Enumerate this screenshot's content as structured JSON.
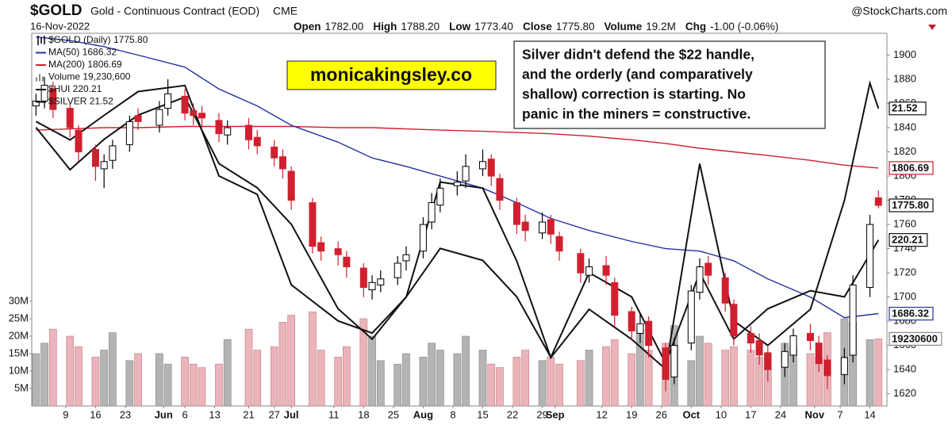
{
  "chart_data": {
    "type": "candlestick",
    "title": "$GOLD",
    "subtitle": "Gold - Continuous Contract (EOD)",
    "exchange": "CME",
    "source": "@StockCharts.com",
    "date": "16-Nov-2022",
    "stats": [
      {
        "label": "Open",
        "value": "1782.00"
      },
      {
        "label": "High",
        "value": "1788.20"
      },
      {
        "label": "Low",
        "value": "1773.40"
      },
      {
        "label": "Close",
        "value": "1775.80"
      },
      {
        "label": "Volume",
        "value": "19.2M"
      },
      {
        "label": "Chg",
        "value": "-1.00 (-0.06%)"
      }
    ],
    "name": "$GOLD (Daily) 1775.80",
    "last_label": "1775.80",
    "up_color": "#000000",
    "down_color": "#d0202f",
    "x": [
      "2022-05-02",
      "2022-05-04",
      "2022-05-06",
      "2022-05-10",
      "2022-05-12",
      "2022-05-16",
      "2022-05-18",
      "2022-05-20",
      "2022-05-24",
      "2022-05-26",
      "2022-05-31",
      "2022-06-02",
      "2022-06-06",
      "2022-06-08",
      "2022-06-10",
      "2022-06-14",
      "2022-06-16",
      "2022-06-21",
      "2022-06-23",
      "2022-06-27",
      "2022-06-29",
      "2022-07-01",
      "2022-07-06",
      "2022-07-08",
      "2022-07-12",
      "2022-07-14",
      "2022-07-18",
      "2022-07-20",
      "2022-07-22",
      "2022-07-26",
      "2022-07-28",
      "2022-08-01",
      "2022-08-03",
      "2022-08-05",
      "2022-08-09",
      "2022-08-11",
      "2022-08-15",
      "2022-08-17",
      "2022-08-19",
      "2022-08-23",
      "2022-08-25",
      "2022-08-29",
      "2022-08-31",
      "2022-09-02",
      "2022-09-07",
      "2022-09-09",
      "2022-09-13",
      "2022-09-15",
      "2022-09-19",
      "2022-09-21",
      "2022-09-23",
      "2022-09-27",
      "2022-09-29",
      "2022-10-03",
      "2022-10-05",
      "2022-10-07",
      "2022-10-11",
      "2022-10-13",
      "2022-10-17",
      "2022-10-19",
      "2022-10-21",
      "2022-10-25",
      "2022-10-27",
      "2022-10-31",
      "2022-11-02",
      "2022-11-04",
      "2022-11-08",
      "2022-11-10",
      "2022-11-14",
      "2022-11-16"
    ],
    "open": [
      1858,
      1862,
      1872,
      1856,
      1838,
      1822,
      1806,
      1813,
      1826,
      1850,
      1842,
      1856,
      1866,
      1854,
      1852,
      1846,
      1834,
      1842,
      1832,
      1824,
      1816,
      1804,
      1778,
      1745,
      1740,
      1733,
      1724,
      1706,
      1710,
      1716,
      1730,
      1738,
      1762,
      1776,
      1792,
      1796,
      1806,
      1814,
      1798,
      1778,
      1762,
      1753,
      1764,
      1750,
      1736,
      1718,
      1726,
      1712,
      1688,
      1670,
      1680,
      1658,
      1634,
      1662,
      1704,
      1728,
      1716,
      1694,
      1670,
      1664,
      1654,
      1642,
      1652,
      1670,
      1662,
      1648,
      1636,
      1652,
      1708,
      1782
    ],
    "high": [
      1868,
      1882,
      1878,
      1860,
      1842,
      1826,
      1818,
      1830,
      1850,
      1856,
      1862,
      1880,
      1872,
      1860,
      1858,
      1852,
      1846,
      1848,
      1838,
      1830,
      1822,
      1808,
      1782,
      1750,
      1746,
      1738,
      1728,
      1718,
      1722,
      1734,
      1742,
      1766,
      1786,
      1798,
      1804,
      1818,
      1822,
      1818,
      1802,
      1782,
      1768,
      1770,
      1768,
      1754,
      1740,
      1732,
      1734,
      1716,
      1692,
      1686,
      1684,
      1662,
      1666,
      1710,
      1732,
      1734,
      1720,
      1698,
      1676,
      1670,
      1660,
      1662,
      1674,
      1678,
      1668,
      1652,
      1658,
      1718,
      1768,
      1788.2
    ],
    "low": [
      1850,
      1856,
      1848,
      1832,
      1812,
      1796,
      1790,
      1806,
      1820,
      1838,
      1836,
      1850,
      1846,
      1842,
      1840,
      1828,
      1826,
      1822,
      1818,
      1808,
      1798,
      1772,
      1736,
      1730,
      1726,
      1716,
      1700,
      1698,
      1704,
      1710,
      1722,
      1732,
      1756,
      1770,
      1784,
      1790,
      1800,
      1792,
      1772,
      1752,
      1746,
      1748,
      1744,
      1730,
      1712,
      1712,
      1710,
      1676,
      1664,
      1662,
      1650,
      1622,
      1628,
      1656,
      1698,
      1710,
      1688,
      1660,
      1654,
      1644,
      1630,
      1634,
      1646,
      1656,
      1638,
      1624,
      1628,
      1646,
      1700,
      1773.4
    ],
    "close": [
      1862,
      1875,
      1855,
      1840,
      1820,
      1808,
      1812,
      1825,
      1845,
      1845,
      1855,
      1868,
      1852,
      1850,
      1848,
      1835,
      1840,
      1830,
      1825,
      1815,
      1806,
      1780,
      1742,
      1738,
      1735,
      1725,
      1708,
      1712,
      1715,
      1728,
      1735,
      1760,
      1778,
      1790,
      1795,
      1808,
      1812,
      1800,
      1780,
      1760,
      1755,
      1762,
      1752,
      1738,
      1720,
      1725,
      1718,
      1685,
      1672,
      1678,
      1660,
      1632,
      1660,
      1705,
      1725,
      1718,
      1695,
      1668,
      1662,
      1652,
      1640,
      1655,
      1668,
      1664,
      1645,
      1635,
      1650,
      1710,
      1760,
      1775.8
    ],
    "xlim": [
      "2022-05-01",
      "2022-11-18"
    ],
    "xticks": [
      {
        "value": "2022-05-09",
        "label": "9"
      },
      {
        "value": "2022-05-16",
        "label": "16"
      },
      {
        "value": "2022-05-23",
        "label": "23"
      },
      {
        "value": "2022-06-01",
        "label": "Jun"
      },
      {
        "value": "2022-06-06",
        "label": "6"
      },
      {
        "value": "2022-06-13",
        "label": "13"
      },
      {
        "value": "2022-06-21",
        "label": "21"
      },
      {
        "value": "2022-06-27",
        "label": "27"
      },
      {
        "value": "2022-07-01",
        "label": "Jul"
      },
      {
        "value": "2022-07-11",
        "label": "11"
      },
      {
        "value": "2022-07-18",
        "label": "18"
      },
      {
        "value": "2022-07-25",
        "label": "25"
      },
      {
        "value": "2022-08-01",
        "label": "Aug"
      },
      {
        "value": "2022-08-08",
        "label": "8"
      },
      {
        "value": "2022-08-15",
        "label": "15"
      },
      {
        "value": "2022-08-22",
        "label": "22"
      },
      {
        "value": "2022-08-29",
        "label": "29"
      },
      {
        "value": "2022-09-01",
        "label": "Sep"
      },
      {
        "value": "2022-09-12",
        "label": "12"
      },
      {
        "value": "2022-09-19",
        "label": "19"
      },
      {
        "value": "2022-09-26",
        "label": "26"
      },
      {
        "value": "2022-10-03",
        "label": "Oct"
      },
      {
        "value": "2022-10-10",
        "label": "10"
      },
      {
        "value": "2022-10-17",
        "label": "17"
      },
      {
        "value": "2022-10-24",
        "label": "24"
      },
      {
        "value": "2022-11-01",
        "label": "Nov"
      },
      {
        "value": "2022-11-07",
        "label": "7"
      },
      {
        "value": "2022-11-14",
        "label": "14"
      }
    ],
    "ylim": [
      1610,
      1918
    ],
    "yticks": [
      1620,
      1640,
      1660,
      1680,
      1700,
      1720,
      1740,
      1760,
      1780,
      1800,
      1820,
      1840,
      1860,
      1880,
      1900
    ],
    "volume": {
      "name": "Volume 19,230,600",
      "last_label": "19230600",
      "up_color": "#b4b4b4",
      "down_color": "#eab4ba",
      "ylim": [
        0,
        30000000
      ],
      "yticks": [
        {
          "value": 5000000,
          "label": "5M"
        },
        {
          "value": 10000000,
          "label": "10M"
        },
        {
          "value": 15000000,
          "label": "15M"
        },
        {
          "value": 20000000,
          "label": "20M"
        },
        {
          "value": 25000000,
          "label": "25M"
        },
        {
          "value": 30000000,
          "label": "30M"
        }
      ],
      "values": [
        15000000,
        18000000,
        22000000,
        20000000,
        17000000,
        14000000,
        16000000,
        21000000,
        13000000,
        15000000,
        15000000,
        12000000,
        14000000,
        12000000,
        11000000,
        12000000,
        19000000,
        22000000,
        16000000,
        17000000,
        24000000,
        26000000,
        27000000,
        16000000,
        14000000,
        17000000,
        25000000,
        20000000,
        13000000,
        12000000,
        15000000,
        14000000,
        18000000,
        16000000,
        15000000,
        20000000,
        16000000,
        12000000,
        11000000,
        14000000,
        16000000,
        13000000,
        14000000,
        12000000,
        13000000,
        16000000,
        17000000,
        19000000,
        15000000,
        22000000,
        16000000,
        18000000,
        23000000,
        13000000,
        20000000,
        18000000,
        16000000,
        17000000,
        16000000,
        14000000,
        15000000,
        18000000,
        17000000,
        15000000,
        14000000,
        21000000,
        25000000,
        24000000,
        19000000,
        19230600
      ]
    },
    "series": [
      {
        "name": "MA(50) 1686.32",
        "color": "#2233a0",
        "last_label": "1686.32",
        "x": [
          "2022-05-02",
          "2022-05-10",
          "2022-05-18",
          "2022-05-26",
          "2022-06-06",
          "2022-06-14",
          "2022-06-23",
          "2022-07-01",
          "2022-07-12",
          "2022-07-20",
          "2022-07-28",
          "2022-08-05",
          "2022-08-15",
          "2022-08-23",
          "2022-08-31",
          "2022-09-09",
          "2022-09-19",
          "2022-09-27",
          "2022-10-05",
          "2022-10-13",
          "2022-10-21",
          "2022-10-31",
          "2022-11-08",
          "2022-11-16"
        ],
        "values": [
          1915,
          1912,
          1907,
          1900,
          1890,
          1872,
          1858,
          1842,
          1828,
          1815,
          1808,
          1800,
          1790,
          1778,
          1765,
          1755,
          1746,
          1740,
          1738,
          1730,
          1715,
          1700,
          1683,
          1686.32
        ]
      },
      {
        "name": "MA(200) 1806.69",
        "color": "#d0202f",
        "last_label": "1806.69",
        "x": [
          "2022-05-02",
          "2022-05-10",
          "2022-05-18",
          "2022-05-26",
          "2022-06-06",
          "2022-06-14",
          "2022-06-23",
          "2022-07-01",
          "2022-07-12",
          "2022-07-20",
          "2022-07-28",
          "2022-08-05",
          "2022-08-15",
          "2022-08-23",
          "2022-08-31",
          "2022-09-09",
          "2022-09-19",
          "2022-09-27",
          "2022-10-05",
          "2022-10-13",
          "2022-10-21",
          "2022-10-31",
          "2022-11-08",
          "2022-11-16"
        ],
        "values": [
          1838,
          1839,
          1840,
          1840,
          1841,
          1841,
          1841,
          1841,
          1840,
          1840,
          1839,
          1838,
          1837,
          1836,
          1835,
          1833,
          1830,
          1827,
          1823,
          1820,
          1817,
          1813,
          1809,
          1806.69
        ]
      },
      {
        "name": "$HUI 220.21",
        "color": "#111111",
        "last_label": "220.21",
        "ylim": [
          177,
          274
        ],
        "x": [
          "2022-05-02",
          "2022-05-10",
          "2022-05-18",
          "2022-05-26",
          "2022-06-06",
          "2022-06-14",
          "2022-06-23",
          "2022-07-01",
          "2022-07-12",
          "2022-07-20",
          "2022-07-28",
          "2022-08-05",
          "2022-08-15",
          "2022-08-23",
          "2022-08-31",
          "2022-09-09",
          "2022-09-19",
          "2022-09-27",
          "2022-10-05",
          "2022-10-13",
          "2022-10-21",
          "2022-10-31",
          "2022-11-08",
          "2022-11-16"
        ],
        "values": [
          249.5,
          238.5,
          246.4,
          252.7,
          257.4,
          240.1,
          233.8,
          224.3,
          202.3,
          194.4,
          205.4,
          218.0,
          214.9,
          205.4,
          189.7,
          211.7,
          205.4,
          188.1,
          211.7,
          194.4,
          202.3,
          207.0,
          205.4,
          220.21
        ]
      },
      {
        "name": "$SILVER 21.52",
        "color": "#111111",
        "last_label": "21.52",
        "ylim": [
          17.64,
          22.5
        ],
        "x": [
          "2022-05-02",
          "2022-05-10",
          "2022-05-18",
          "2022-05-26",
          "2022-06-06",
          "2022-06-14",
          "2022-06-23",
          "2022-07-01",
          "2022-07-12",
          "2022-07-20",
          "2022-07-28",
          "2022-08-05",
          "2022-08-15",
          "2022-08-23",
          "2022-08-31",
          "2022-09-09",
          "2022-09-19",
          "2022-09-27",
          "2022-10-05",
          "2022-10-13",
          "2022-10-21",
          "2022-10-31",
          "2022-11-08",
          "2022-11-14",
          "2022-11-16"
        ],
        "values": [
          21.35,
          21.11,
          21.43,
          21.74,
          21.82,
          20.64,
          20.4,
          19.22,
          18.75,
          18.59,
          19.06,
          20.56,
          20.48,
          19.53,
          18.27,
          18.9,
          18.51,
          18.12,
          20.8,
          18.75,
          18.43,
          18.9,
          20.32,
          21.85,
          21.52
        ]
      }
    ],
    "annotations": {
      "site": "monicakingsley.co",
      "note": [
        "Silver didn't defend the $22 handle,",
        "and the orderly (and comparatively",
        "shallow) correction is starting. No",
        "panic in the miners = constructive."
      ]
    }
  }
}
